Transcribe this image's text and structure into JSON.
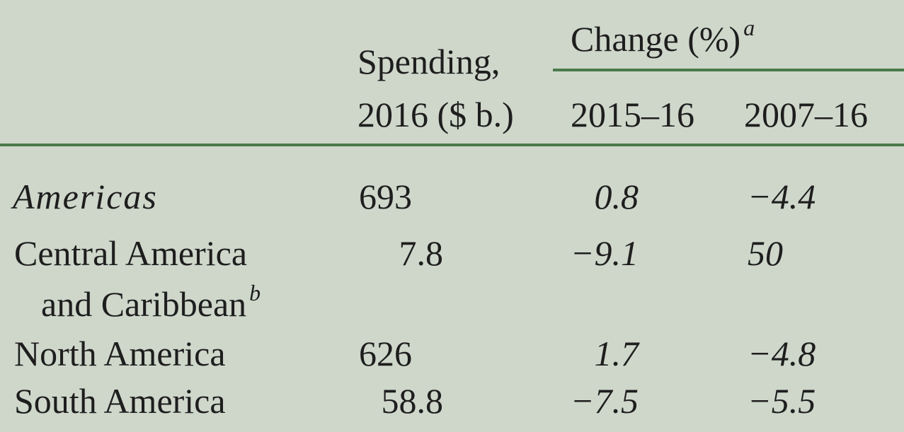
{
  "header": {
    "spending_line1": "Spending,",
    "spending_line2": "2016 ($ b.)",
    "change_label": "Change (%)",
    "change_note_mark": "a",
    "col_2015_16": "2015–16",
    "col_2007_16": "2007–16"
  },
  "rows": [
    {
      "region": "Americas",
      "spending": "693",
      "change_2015_16": "0.8",
      "change_2007_16": "−4.4"
    },
    {
      "region_line1": "Central America",
      "region_line2": "and Caribbean",
      "note_mark": "b",
      "spending": "7.8",
      "change_2015_16": "−9.1",
      "change_2007_16": "50"
    },
    {
      "region": "North America",
      "spending": "626",
      "change_2015_16": "1.7",
      "change_2007_16": "−4.8"
    },
    {
      "region": "South America",
      "spending": "58.8",
      "change_2015_16": "−7.5",
      "change_2007_16": "−5.5"
    }
  ]
}
